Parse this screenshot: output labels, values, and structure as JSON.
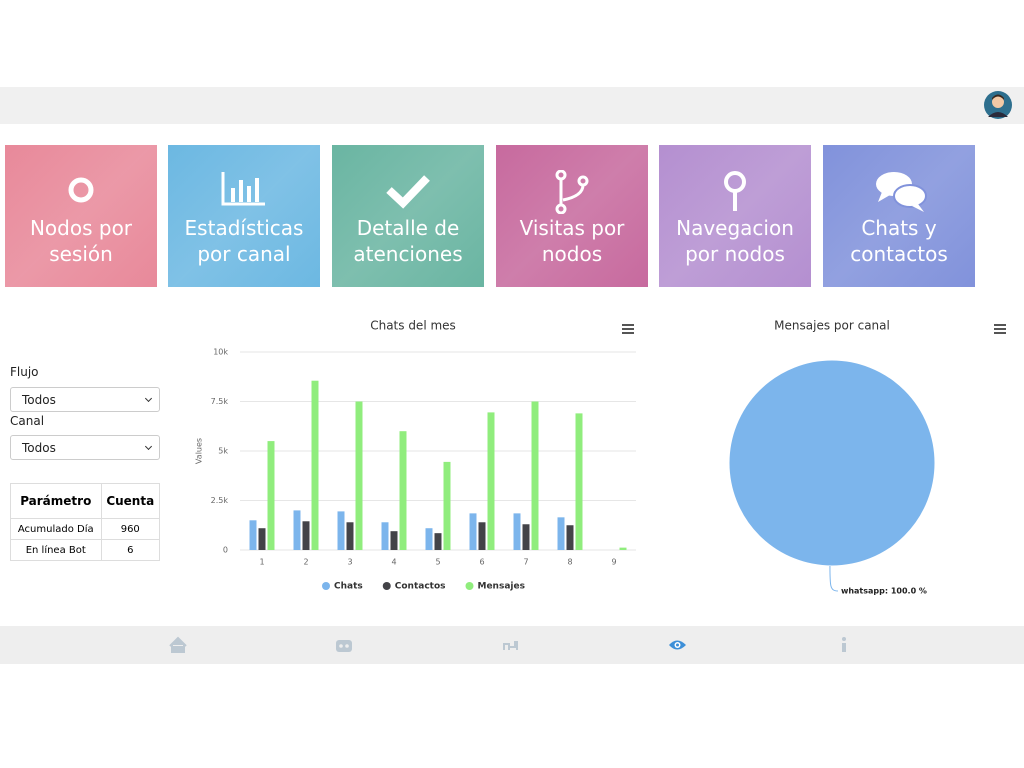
{
  "tiles": [
    {
      "label": "Nodos por sesión",
      "color": "#e8899a"
    },
    {
      "label": "Estadísticas por canal",
      "color": "#6cb8e2"
    },
    {
      "label": "Detalle de atenciones",
      "color": "#6ab5a2"
    },
    {
      "label": "Visitas por nodos",
      "color": "#c76a9e"
    },
    {
      "label": "Navegacion por nodos",
      "color": "#b48fd0"
    },
    {
      "label": "Chats y contactos",
      "color": "#8192db"
    }
  ],
  "filters": [
    {
      "label": "Flujo",
      "value": "Todos"
    },
    {
      "label": "Canal",
      "value": "Todos"
    }
  ],
  "table": {
    "header": [
      "Parámetro",
      "Cuenta"
    ],
    "rows": [
      [
        "Acumulado Día",
        960
      ],
      [
        "En línea Bot",
        6
      ]
    ]
  },
  "chart_data": [
    {
      "type": "bar",
      "title": "Chats del mes",
      "y_label": "Values",
      "categories": [
        "1",
        "2",
        "3",
        "4",
        "5",
        "6",
        "7",
        "8",
        "9"
      ],
      "ylim": [
        0,
        10000
      ],
      "yticks": [
        0,
        {
          "value": 2500,
          "label": "2.5k"
        },
        {
          "value": 5000,
          "label": "5k"
        },
        {
          "value": 7500,
          "label": "7.5k"
        },
        {
          "value": 10000,
          "label": "10k"
        }
      ],
      "grid": true,
      "series": [
        {
          "name": "Chats",
          "color": "#7cb5ec",
          "values": [
            1500,
            2000,
            1950,
            1400,
            1100,
            1850,
            1850,
            1650,
            0
          ]
        },
        {
          "name": "Contactos",
          "color": "#434348",
          "values": [
            1100,
            1450,
            1400,
            950,
            850,
            1400,
            1300,
            1250,
            0
          ]
        },
        {
          "name": "Mensajes",
          "color": "#90ed7d",
          "values": [
            5500,
            8550,
            7500,
            6000,
            4450,
            6950,
            7500,
            6900,
            120
          ]
        }
      ]
    },
    {
      "type": "pie",
      "title": "Mensajes por canal",
      "categories": [
        "whatsapp"
      ],
      "values": [
        100
      ],
      "value_labels": [
        "whatsapp: 100.0 %"
      ],
      "colors": [
        "#7cb5ec"
      ]
    }
  ]
}
